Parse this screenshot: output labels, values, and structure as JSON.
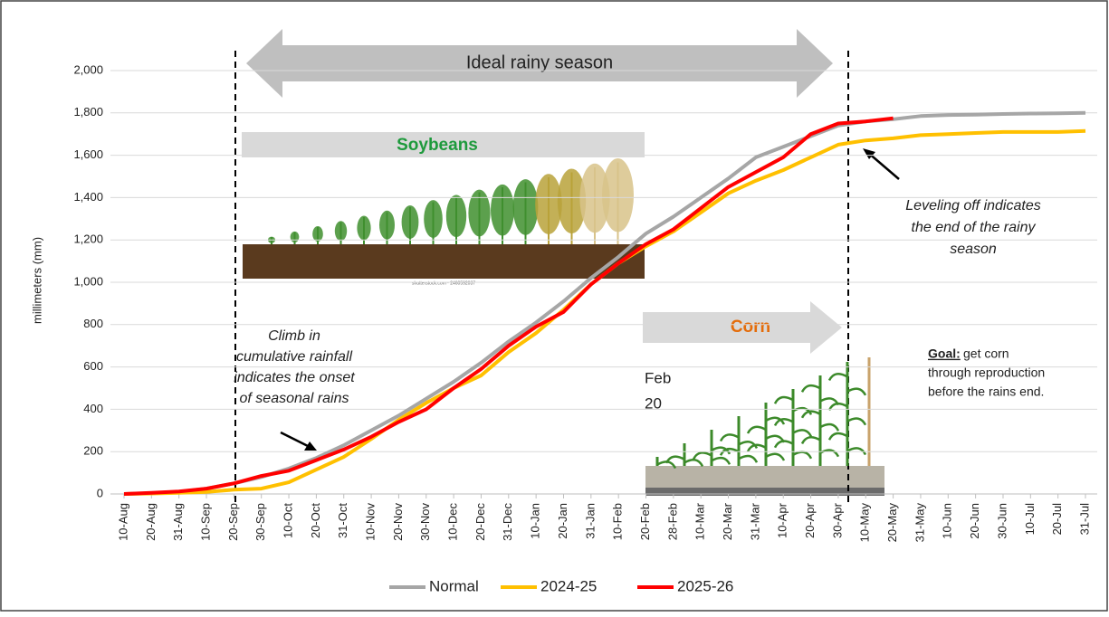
{
  "chart_data": {
    "type": "line",
    "y_label": "millimeters (mm)",
    "categories": [
      "10-Aug",
      "20-Aug",
      "31-Aug",
      "10-Sep",
      "20-Sep",
      "30-Sep",
      "10-Oct",
      "20-Oct",
      "31-Oct",
      "10-Nov",
      "20-Nov",
      "30-Nov",
      "10-Dec",
      "20-Dec",
      "31-Dec",
      "10-Jan",
      "20-Jan",
      "31-Jan",
      "10-Feb",
      "20-Feb",
      "28-Feb",
      "10-Mar",
      "20-Mar",
      "31-Mar",
      "10-Apr",
      "20-Apr",
      "30-Apr",
      "10-May",
      "20-May",
      "31-May",
      "10-Jun",
      "20-Jun",
      "30-Jun",
      "10-Jul",
      "20-Jul",
      "31-Jul"
    ],
    "series": [
      {
        "name": "Normal",
        "color": "#a6a6a6",
        "values": [
          0,
          3,
          10,
          25,
          50,
          80,
          120,
          170,
          230,
          300,
          370,
          450,
          530,
          620,
          720,
          810,
          910,
          1020,
          1120,
          1230,
          1310,
          1400,
          1490,
          1590,
          1640,
          1690,
          1740,
          1760,
          1770,
          1785,
          1790,
          1792,
          1795,
          1797,
          1798,
          1800
        ]
      },
      {
        "name": "2024-25",
        "color": "#ffc000",
        "values": [
          0,
          2,
          5,
          10,
          20,
          25,
          55,
          115,
          175,
          260,
          350,
          430,
          500,
          560,
          670,
          760,
          870,
          990,
          1090,
          1170,
          1240,
          1330,
          1420,
          1480,
          1530,
          1590,
          1650,
          1670,
          1680,
          1695,
          1700,
          1705,
          1710,
          1710,
          1710,
          1715
        ]
      },
      {
        "name": "2025-26",
        "color": "#ff0000",
        "values": [
          0,
          5,
          12,
          25,
          50,
          85,
          110,
          160,
          210,
          270,
          340,
          400,
          500,
          590,
          700,
          790,
          860,
          990,
          1090,
          1180,
          1250,
          1350,
          1450,
          1520,
          1590,
          1700,
          1750,
          1760,
          1775,
          null,
          null,
          null,
          null,
          null,
          null,
          null
        ]
      }
    ],
    "ylim": [
      0,
      2000
    ],
    "yticks": [
      0,
      200,
      400,
      600,
      800,
      {
        "value": 1000,
        "label": "1,000"
      },
      {
        "value": 1200,
        "label": "1,200"
      },
      {
        "value": 1400,
        "label": "1,400"
      },
      {
        "value": 1600,
        "label": "1,600"
      },
      {
        "value": 1800,
        "label": "1,800"
      },
      {
        "value": 2000,
        "label": "2,000"
      }
    ],
    "grid": true,
    "legend": "bottom",
    "annotations": {
      "ideal_rainy_season": "Ideal rainy season",
      "soybeans": "Soybeans",
      "corn": "Corn",
      "feb_20": [
        "Feb",
        "20"
      ],
      "watermark": "shutterstock.com · 2460592037",
      "leveling": [
        "Leveling off indicates",
        "the end of the rainy",
        "season"
      ],
      "climb": [
        "Climb in",
        "cumulative rainfall",
        "indicates the onset",
        "of seasonal rains"
      ],
      "goal_label": "Goal:",
      "goal": [
        "get corn",
        "through reproduction",
        "before the rains end."
      ]
    }
  }
}
